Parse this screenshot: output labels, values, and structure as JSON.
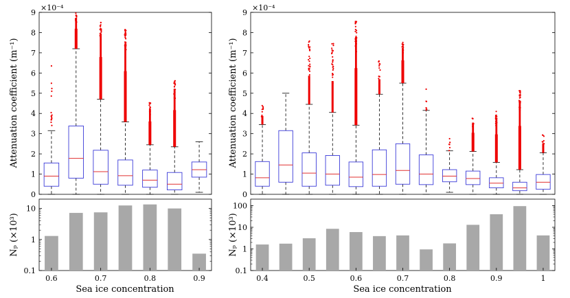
{
  "chart_data": [
    {
      "type": "box",
      "panel": "left-top",
      "ylabel": "Attenuation coefficient (m⁻¹)",
      "exponent_label": "×10⁻⁴",
      "ylim": [
        0,
        9
      ],
      "yticks": [
        "0",
        "1",
        "2",
        "3",
        "4",
        "5",
        "6",
        "7",
        "8",
        "9"
      ],
      "x": [
        0.6,
        0.65,
        0.7,
        0.75,
        0.8,
        0.85,
        0.9
      ],
      "boxes": [
        {
          "q1": 0.4,
          "median": 0.9,
          "q3": 1.55,
          "whisker_low": 0.0,
          "whisker_high": 3.15,
          "outlier_max": 6.35,
          "outlier_density": "sparse"
        },
        {
          "q1": 0.8,
          "median": 1.78,
          "q3": 3.38,
          "whisker_low": 0.0,
          "whisker_high": 7.2,
          "outlier_max": 9.0,
          "outlier_density": "dense"
        },
        {
          "q1": 0.5,
          "median": 1.12,
          "q3": 2.18,
          "whisker_low": 0.0,
          "whisker_high": 4.7,
          "outlier_max": 8.5,
          "outlier_density": "dense"
        },
        {
          "q1": 0.45,
          "median": 0.92,
          "q3": 1.7,
          "whisker_low": 0.0,
          "whisker_high": 3.58,
          "outlier_max": 8.15,
          "outlier_density": "dense"
        },
        {
          "q1": 0.35,
          "median": 0.7,
          "q3": 1.2,
          "whisker_low": 0.0,
          "whisker_high": 2.45,
          "outlier_max": 4.55,
          "outlier_density": "dense"
        },
        {
          "q1": 0.22,
          "median": 0.5,
          "q3": 1.08,
          "whisker_low": 0.0,
          "whisker_high": 2.35,
          "outlier_max": 5.65,
          "outlier_density": "dense"
        },
        {
          "q1": 0.85,
          "median": 1.22,
          "q3": 1.6,
          "whisker_low": 0.1,
          "whisker_high": 2.6,
          "outlier_max": null,
          "outlier_density": "none"
        }
      ]
    },
    {
      "type": "bar",
      "panel": "left-bottom",
      "ylabel": "Nₚ (×10³)",
      "xlabel": "Sea ice concentration",
      "yscale": "log",
      "ylim": [
        0.1,
        20
      ],
      "yticks": [
        "0.1",
        "1",
        "10"
      ],
      "xticks": [
        "0.6",
        "0.7",
        "0.8",
        "0.9"
      ],
      "x": [
        0.6,
        0.65,
        0.7,
        0.75,
        0.8,
        0.85,
        0.9
      ],
      "values": [
        1.3,
        7.2,
        7.5,
        12.5,
        13.5,
        10.0,
        0.35
      ]
    },
    {
      "type": "box",
      "panel": "right-top",
      "ylabel": "Attenuation coefficient (m⁻¹)",
      "exponent_label": "×10⁻⁴",
      "ylim": [
        0,
        9
      ],
      "yticks": [
        "0",
        "1",
        "2",
        "3",
        "4",
        "5",
        "6",
        "7",
        "8",
        "9"
      ],
      "x": [
        0.4,
        0.45,
        0.5,
        0.55,
        0.6,
        0.65,
        0.7,
        0.75,
        0.8,
        0.85,
        0.9,
        0.95,
        1.0
      ],
      "boxes": [
        {
          "q1": 0.4,
          "median": 0.82,
          "q3": 1.62,
          "whisker_low": 0.0,
          "whisker_high": 3.45,
          "outlier_max": 4.4,
          "outlier_density": "medium"
        },
        {
          "q1": 0.6,
          "median": 1.45,
          "q3": 3.15,
          "whisker_low": 0.0,
          "whisker_high": 5.0,
          "outlier_max": null,
          "outlier_density": "none"
        },
        {
          "q1": 0.4,
          "median": 1.05,
          "q3": 2.05,
          "whisker_low": 0.0,
          "whisker_high": 4.45,
          "outlier_max": 7.6,
          "outlier_density": "medium"
        },
        {
          "q1": 0.45,
          "median": 1.0,
          "q3": 1.92,
          "whisker_low": 0.0,
          "whisker_high": 4.05,
          "outlier_max": 7.5,
          "outlier_density": "medium"
        },
        {
          "q1": 0.38,
          "median": 0.85,
          "q3": 1.6,
          "whisker_low": 0.0,
          "whisker_high": 3.42,
          "outlier_max": 8.55,
          "outlier_density": "dense"
        },
        {
          "q1": 0.4,
          "median": 0.98,
          "q3": 2.2,
          "whisker_low": 0.0,
          "whisker_high": 4.95,
          "outlier_max": 6.6,
          "outlier_density": "medium"
        },
        {
          "q1": 0.5,
          "median": 1.18,
          "q3": 2.5,
          "whisker_low": 0.0,
          "whisker_high": 5.5,
          "outlier_max": 7.55,
          "outlier_density": "dense"
        },
        {
          "q1": 0.48,
          "median": 1.0,
          "q3": 1.95,
          "whisker_low": 0.0,
          "whisker_high": 4.15,
          "outlier_max": 5.2,
          "outlier_density": "sparse"
        },
        {
          "q1": 0.62,
          "median": 0.9,
          "q3": 1.22,
          "whisker_low": 0.1,
          "whisker_high": 2.15,
          "outlier_max": 2.75,
          "outlier_density": "sparse"
        },
        {
          "q1": 0.48,
          "median": 0.78,
          "q3": 1.15,
          "whisker_low": 0.0,
          "whisker_high": 2.12,
          "outlier_max": 3.8,
          "outlier_density": "dense"
        },
        {
          "q1": 0.32,
          "median": 0.55,
          "q3": 0.82,
          "whisker_low": 0.0,
          "whisker_high": 1.58,
          "outlier_max": 4.1,
          "outlier_density": "dense"
        },
        {
          "q1": 0.18,
          "median": 0.32,
          "q3": 0.6,
          "whisker_low": 0.0,
          "whisker_high": 1.22,
          "outlier_max": 5.15,
          "outlier_density": "dense"
        },
        {
          "q1": 0.25,
          "median": 0.6,
          "q3": 0.98,
          "whisker_low": 0.0,
          "whisker_high": 2.05,
          "outlier_max": 3.0,
          "outlier_density": "medium"
        }
      ]
    },
    {
      "type": "bar",
      "panel": "right-bottom",
      "ylabel": "Nₚ (×10³)",
      "xlabel": "Sea ice concentration",
      "yscale": "log",
      "ylim": [
        0.1,
        200
      ],
      "yticks": [
        "0.1",
        "1",
        "10",
        "100"
      ],
      "xticks": [
        "0.4",
        "0.5",
        "0.6",
        "0.7",
        "0.8",
        "0.9",
        "1"
      ],
      "x": [
        0.4,
        0.45,
        0.5,
        0.55,
        0.6,
        0.65,
        0.7,
        0.75,
        0.8,
        0.85,
        0.9,
        0.95,
        1.0
      ],
      "values": [
        1.6,
        1.75,
        3.1,
        8.5,
        6.0,
        3.9,
        4.2,
        0.95,
        1.8,
        13.0,
        40.0,
        95.0,
        4.2
      ]
    }
  ],
  "colors": {
    "box": "#3a3ad8",
    "median": "#e03030",
    "outlier": "#ee0000",
    "whisker": "#000000",
    "bar": "#a8a8a8"
  }
}
